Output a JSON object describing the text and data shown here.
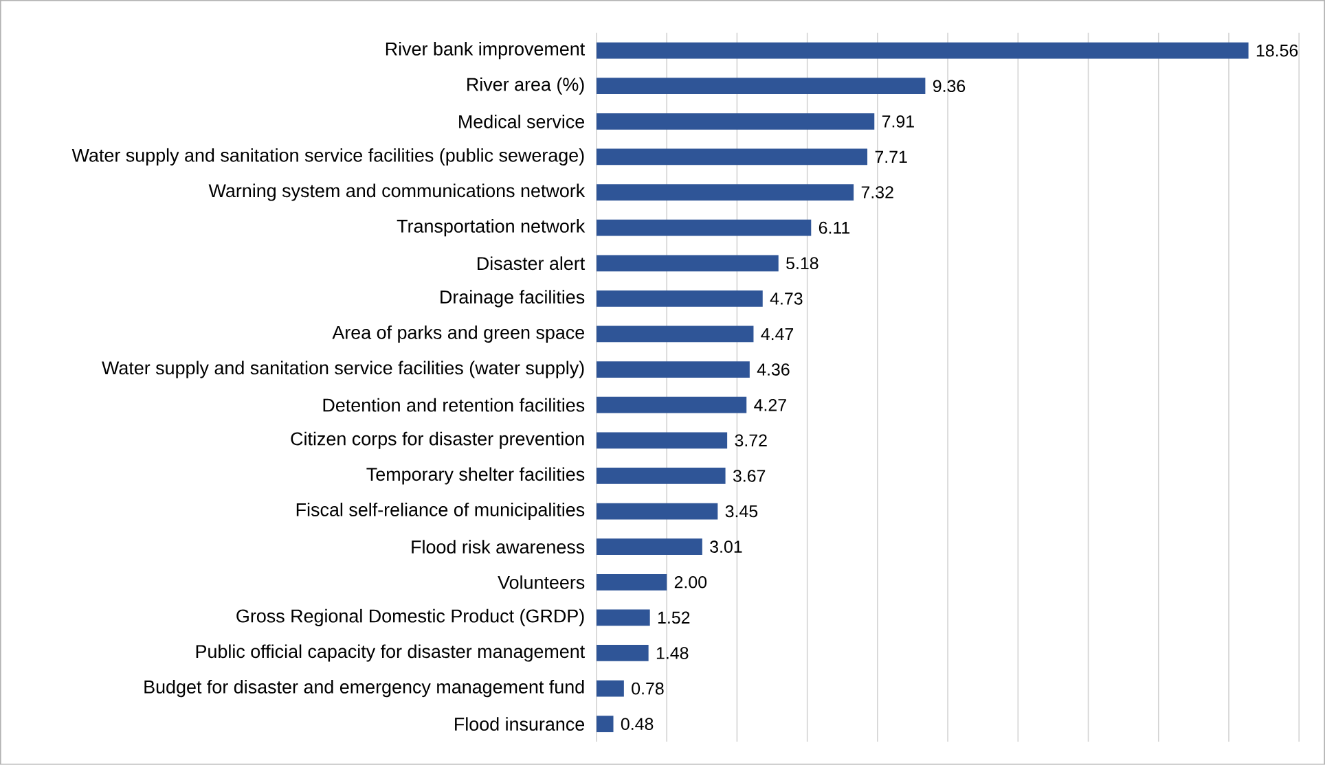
{
  "chart_data": {
    "type": "bar",
    "orientation": "horizontal",
    "categories": [
      "River bank improvement",
      "River area (%)",
      "Medical service",
      "Water supply and sanitation service facilities (public sewerage)",
      "Warning system and communications network",
      "Transportation network",
      "Disaster alert",
      "Drainage facilities",
      "Area of parks and green space",
      "Water supply and sanitation service facilities (water supply)",
      "Detention and retention facilities",
      "Citizen corps for disaster prevention",
      "Temporary shelter facilities",
      "Fiscal self-reliance of municipalities",
      "Flood risk awareness",
      "Volunteers",
      "Gross Regional Domestic Product (GRDP)",
      "Public official capacity for disaster management",
      "Budget for disaster and emergency management fund",
      "Flood insurance"
    ],
    "values": [
      18.56,
      9.36,
      7.91,
      7.71,
      7.32,
      6.11,
      5.18,
      4.73,
      4.47,
      4.36,
      4.27,
      3.72,
      3.67,
      3.45,
      3.01,
      2.0,
      1.52,
      1.48,
      0.78,
      0.48
    ],
    "value_labels": [
      "18.56",
      "9.36",
      "7.91",
      "7.71",
      "7.32",
      "6.11",
      "5.18",
      "4.73",
      "4.47",
      "4.36",
      "4.27",
      "3.72",
      "3.67",
      "3.45",
      "3.01",
      "2.00",
      "1.52",
      "1.48",
      "0.78",
      "0.48"
    ],
    "color": "#2f5597",
    "xlim": [
      0,
      20
    ],
    "xticks": [
      {
        "value": 0,
        "label": null
      },
      {
        "value": 2,
        "label": null
      },
      {
        "value": 4,
        "label": null
      },
      {
        "value": 6,
        "label": null
      },
      {
        "value": 8,
        "label": null
      },
      {
        "value": 10,
        "label": null
      },
      {
        "value": 12,
        "label": null
      },
      {
        "value": 14,
        "label": null
      },
      {
        "value": 16,
        "label": null
      },
      {
        "value": 18,
        "label": null
      },
      {
        "value": 20,
        "label": null
      }
    ],
    "grid": "x",
    "tick_labels": "y"
  }
}
